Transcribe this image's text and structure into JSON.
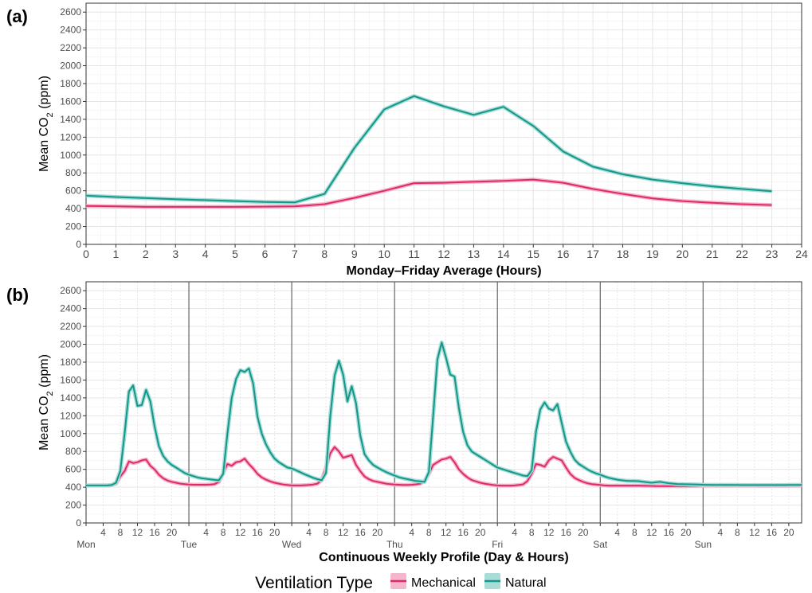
{
  "colors": {
    "mechanical": "#e0296b",
    "natural": "#12978a",
    "mechanical_band": "#f4b6cc",
    "natural_band": "#a8dcd6",
    "grid": "#e6e6e6",
    "axis": "#333333"
  },
  "chart_data": [
    {
      "panel": "(a)",
      "type": "line",
      "xlabel": "Monday–Friday Average (Hours)",
      "ylabel_main": "Mean CO",
      "ylabel_sub": "2",
      "ylabel_tail": " (ppm)",
      "xlim": [
        0,
        24
      ],
      "ylim": [
        0,
        2700
      ],
      "x_ticks": [
        0,
        1,
        2,
        3,
        4,
        5,
        6,
        7,
        8,
        9,
        10,
        11,
        12,
        13,
        14,
        15,
        16,
        17,
        18,
        19,
        20,
        21,
        22,
        23,
        24
      ],
      "y_ticks": [
        0,
        200,
        400,
        600,
        800,
        1000,
        1200,
        1400,
        1600,
        1800,
        2000,
        2200,
        2400,
        2600
      ],
      "x": [
        0,
        1,
        2,
        3,
        4,
        5,
        6,
        7,
        8,
        9,
        10,
        11,
        12,
        13,
        14,
        15,
        16,
        17,
        18,
        19,
        20,
        21,
        22,
        23
      ],
      "series": [
        {
          "name": "Mechanical",
          "values": [
            430,
            425,
            420,
            420,
            420,
            420,
            422,
            425,
            450,
            520,
            600,
            685,
            690,
            700,
            710,
            725,
            690,
            620,
            565,
            515,
            485,
            465,
            450,
            440
          ]
        },
        {
          "name": "Natural",
          "values": [
            545,
            530,
            518,
            505,
            495,
            485,
            475,
            470,
            565,
            1080,
            1510,
            1660,
            1545,
            1450,
            1540,
            1325,
            1040,
            870,
            785,
            725,
            685,
            650,
            620,
            595
          ]
        }
      ]
    },
    {
      "panel": "(b)",
      "type": "line",
      "xlabel": "Continuous Weekly Profile (Day & Hours)",
      "ylabel_main": "Mean CO",
      "ylabel_sub": "2",
      "ylabel_tail": " (ppm)",
      "xlim": [
        0,
        167
      ],
      "ylim": [
        0,
        2700
      ],
      "y_ticks": [
        0,
        200,
        400,
        600,
        800,
        1000,
        1200,
        1400,
        1600,
        1800,
        2000,
        2200,
        2400,
        2600
      ],
      "hour_ticks": [
        4,
        8,
        12,
        16,
        20
      ],
      "day_labels": [
        "Mon",
        "Tue",
        "Wed",
        "Thu",
        "Fri",
        "Sat",
        "Sun"
      ],
      "series": [
        {
          "name": "Mechanical",
          "days": [
            [
              420,
              420,
              420,
              420,
              420,
              420,
              425,
              440,
              520,
              580,
              690,
              670,
              680,
              700,
              710,
              640,
              600,
              540,
              500,
              475,
              460,
              450,
              440,
              435
            ],
            [
              430,
              428,
              428,
              428,
              428,
              430,
              435,
              460,
              560,
              660,
              640,
              680,
              690,
              720,
              660,
              610,
              550,
              510,
              485,
              465,
              450,
              440,
              430,
              425
            ],
            [
              420,
              420,
              420,
              422,
              425,
              430,
              440,
              480,
              620,
              780,
              850,
              800,
              730,
              745,
              760,
              650,
              580,
              520,
              490,
              470,
              460,
              450,
              440,
              435
            ],
            [
              430,
              428,
              426,
              426,
              428,
              432,
              440,
              470,
              550,
              650,
              680,
              710,
              720,
              740,
              680,
              600,
              550,
              510,
              480,
              465,
              450,
              440,
              432,
              425
            ],
            [
              420,
              418,
              418,
              418,
              420,
              425,
              432,
              470,
              550,
              660,
              650,
              630,
              700,
              740,
              720,
              700,
              620,
              550,
              505,
              480,
              460,
              445,
              435,
              430
            ],
            [
              425,
              420,
              418,
              418,
              418,
              418,
              418,
              418,
              418,
              418,
              416,
              415,
              414,
              413,
              413,
              413,
              412,
              412,
              412,
              412,
              413,
              414,
              414,
              415
            ],
            [
              416,
              417,
              418,
              418,
              418,
              418,
              418,
              418,
              418,
              418,
              418,
              418,
              418,
              417,
              416,
              416,
              416,
              416,
              416,
              416,
              417,
              418,
              419,
              420
            ]
          ]
        },
        {
          "name": "Natural",
          "days": [
            [
              420,
              420,
              420,
              420,
              420,
              420,
              425,
              450,
              580,
              1000,
              1470,
              1540,
              1310,
              1320,
              1490,
              1360,
              1080,
              860,
              750,
              690,
              650,
              620,
              590,
              560
            ],
            [
              540,
              525,
              510,
              500,
              495,
              488,
              482,
              478,
              550,
              1000,
              1400,
              1610,
              1710,
              1690,
              1730,
              1560,
              1190,
              1000,
              880,
              790,
              720,
              680,
              650,
              620
            ],
            [
              610,
              590,
              568,
              545,
              525,
              505,
              490,
              478,
              560,
              1200,
              1650,
              1815,
              1660,
              1360,
              1530,
              1340,
              980,
              770,
              700,
              650,
              620,
              595,
              570,
              550
            ],
            [
              530,
              512,
              500,
              490,
              480,
              470,
              465,
              460,
              570,
              1200,
              1830,
              2020,
              1850,
              1660,
              1640,
              1290,
              1020,
              870,
              800,
              770,
              740,
              710,
              680,
              650
            ],
            [
              620,
              605,
              590,
              575,
              560,
              545,
              530,
              525,
              590,
              1020,
              1270,
              1350,
              1280,
              1260,
              1330,
              1120,
              910,
              800,
              710,
              660,
              630,
              600,
              575,
              555
            ],
            [
              540,
              520,
              505,
              495,
              485,
              478,
              472,
              470,
              470,
              468,
              462,
              455,
              450,
              455,
              460,
              452,
              445,
              440,
              436,
              434,
              433,
              432,
              431,
              430
            ],
            [
              428,
              427,
              426,
              425,
              425,
              425,
              425,
              425,
              425,
              424,
              424,
              424,
              424,
              424,
              424,
              424,
              424,
              424,
              424,
              424,
              425,
              425,
              425,
              426
            ]
          ]
        }
      ]
    }
  ],
  "panel_labels": {
    "a": "(a)",
    "b": "(b)"
  },
  "legend": {
    "title": "Ventilation Type",
    "items": [
      "Mechanical",
      "Natural"
    ]
  }
}
